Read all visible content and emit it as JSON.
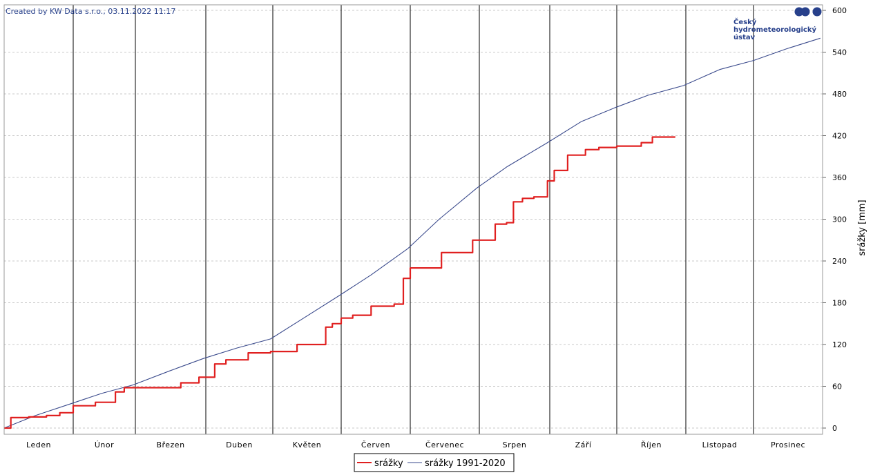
{
  "credit": "Created by KW Data s.r.o., 03.11.2022 11:17",
  "logo": {
    "lines": [
      "Český",
      "hydrometeorologický",
      "ústav"
    ],
    "color": "#27408b"
  },
  "chart_data": {
    "type": "line",
    "title": "",
    "xlabel": "",
    "ylabel": "srážky [mm]",
    "ylim": [
      0,
      600
    ],
    "yticks": [
      0,
      60,
      120,
      180,
      240,
      300,
      360,
      420,
      480,
      540,
      600
    ],
    "grid": "horizontal dashed + vertical month separators",
    "legend_position": "bottom-center",
    "months": [
      "Leden",
      "Únor",
      "Březen",
      "Duben",
      "Květen",
      "Červen",
      "Červenec",
      "Srpen",
      "Září",
      "Říjen",
      "Listopad",
      "Prosinec"
    ],
    "x_unit": "day of year",
    "series": [
      {
        "name": "srážky",
        "color": "#e02020",
        "style": "step",
        "x": [
          1,
          4,
          12,
          20,
          26,
          32,
          42,
          51,
          55,
          60,
          80,
          88,
          95,
          100,
          110,
          120,
          132,
          145,
          148,
          152,
          157,
          165,
          175,
          179,
          182,
          196,
          210,
          220,
          225,
          228,
          232,
          237,
          243,
          246,
          252,
          260,
          266,
          274,
          285,
          290,
          300
        ],
        "y": [
          0,
          15,
          16,
          18,
          22,
          32,
          37,
          52,
          58,
          58,
          65,
          73,
          92,
          98,
          108,
          110,
          120,
          145,
          150,
          158,
          162,
          175,
          178,
          215,
          230,
          252,
          270,
          293,
          295,
          325,
          330,
          332,
          355,
          370,
          392,
          400,
          403,
          405,
          410,
          418,
          419
        ]
      },
      {
        "name": "srážky 1991-2020",
        "color": "#3a4a8c",
        "style": "line",
        "x": [
          1,
          15,
          31,
          45,
          59,
          75,
          90,
          105,
          120,
          135,
          151,
          165,
          181,
          195,
          212,
          225,
          243,
          258,
          273,
          288,
          304,
          320,
          335,
          350,
          365
        ],
        "y": [
          0,
          18,
          35,
          50,
          62,
          82,
          100,
          115,
          128,
          158,
          190,
          220,
          258,
          300,
          345,
          375,
          410,
          440,
          460,
          478,
          492,
          515,
          528,
          545,
          560
        ]
      }
    ]
  }
}
